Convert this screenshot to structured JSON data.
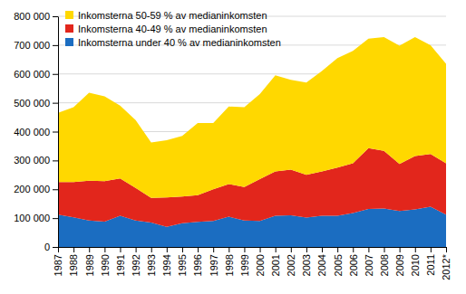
{
  "chart_data": {
    "type": "area",
    "stacked": true,
    "grid": true,
    "legend": "top-left",
    "categories": [
      "1987",
      "1988",
      "1989",
      "1990",
      "1991",
      "1992",
      "1993",
      "1994",
      "1995",
      "1996",
      "1997",
      "1998",
      "1999",
      "2000",
      "2001",
      "2002",
      "2003",
      "2004",
      "2005",
      "2006",
      "2007",
      "2008",
      "2009",
      "2010",
      "2011",
      "2012*"
    ],
    "series": [
      {
        "name": "Inkomsterna under 40 % av medianinkomsten",
        "color": "#1b6dc1",
        "values": [
          112000,
          103000,
          92000,
          88000,
          108000,
          92000,
          85000,
          70000,
          82000,
          87000,
          90000,
          105000,
          92000,
          90000,
          108000,
          110000,
          102000,
          108000,
          108000,
          118000,
          132000,
          133000,
          125000,
          130000,
          140000,
          112000
        ]
      },
      {
        "name": "Inkomsterna 40-49 % av medianinkomsten",
        "color": "#e2261c",
        "values": [
          113000,
          122000,
          138000,
          140000,
          130000,
          113000,
          85000,
          102000,
          93000,
          93000,
          110000,
          113000,
          116000,
          145000,
          154000,
          158000,
          148000,
          154000,
          167000,
          172000,
          211000,
          200000,
          163000,
          185000,
          182000,
          178000
        ]
      },
      {
        "name": "Inkomsterna 50-59 % av medianinkomsten",
        "color": "#ffd800",
        "values": [
          240000,
          260000,
          305000,
          294000,
          252000,
          235000,
          192000,
          198000,
          210000,
          250000,
          230000,
          269000,
          277000,
          295000,
          333000,
          312000,
          320000,
          348000,
          380000,
          390000,
          379000,
          395000,
          410000,
          413000,
          378000,
          345000
        ]
      }
    ],
    "ylim": [
      0,
      800000
    ],
    "yticks": [
      0,
      {
        "value": 100000,
        "label": "100 000"
      },
      {
        "value": 200000,
        "label": "200 000"
      },
      {
        "value": 300000,
        "label": "300 000"
      },
      {
        "value": 400000,
        "label": "400 000"
      },
      {
        "value": 500000,
        "label": "500 000"
      },
      {
        "value": 600000,
        "label": "600 000"
      },
      {
        "value": 700000,
        "label": "700 000"
      },
      {
        "value": 800000,
        "label": "800 000"
      }
    ]
  }
}
